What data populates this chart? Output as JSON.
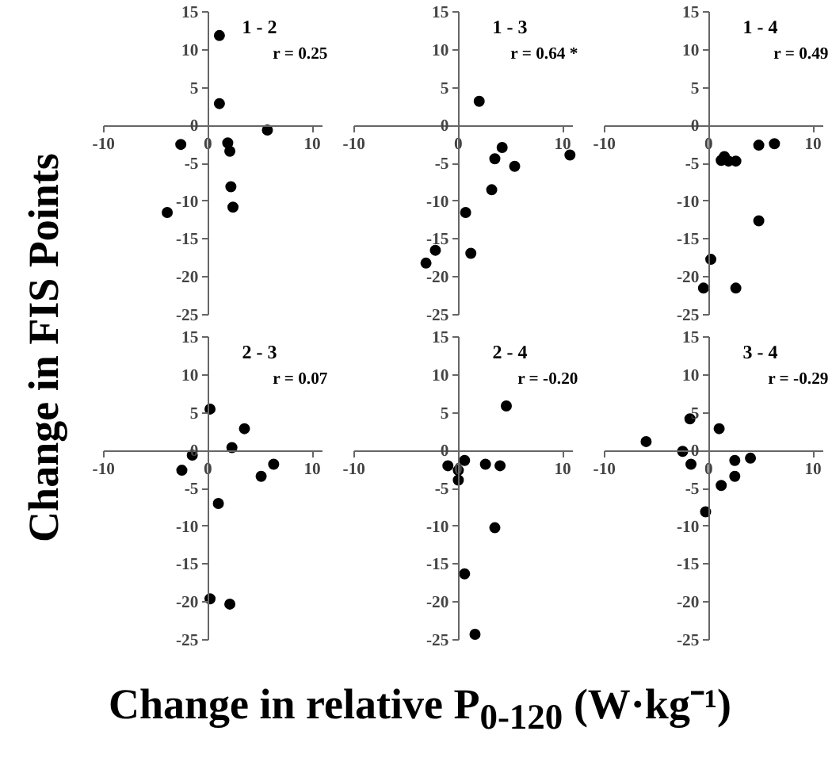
{
  "chart_data": [
    {
      "type": "scatter",
      "title": "1 - 2",
      "annotations": [
        "r = 0.25"
      ],
      "ylabel": "Change in FIS Points",
      "x": [
        1.1,
        1.1,
        5.7,
        -2.6,
        1.9,
        2.1,
        2.2,
        2.4,
        -3.9
      ],
      "values": [
        11.9,
        2.9,
        -0.6,
        -2.5,
        -2.3,
        -3.4,
        -8.1,
        -10.8,
        -11.5
      ],
      "color": "#000000",
      "marker": "circle",
      "xlim": [
        -10,
        11
      ],
      "ylim": [
        -25,
        15
      ],
      "xticks": [
        -10,
        0,
        10
      ],
      "yticks": [
        -25,
        -20,
        -15,
        -10,
        -5,
        0,
        5,
        10,
        15
      ],
      "grid": false
    },
    {
      "type": "scatter",
      "title": "1 - 3",
      "annotations": [
        "r = 0.64 *"
      ],
      "x": [
        2.0,
        4.2,
        3.5,
        5.4,
        10.7,
        3.2,
        0.7,
        -2.2,
        1.2,
        -3.1
      ],
      "values": [
        3.2,
        -2.9,
        -4.4,
        -5.4,
        -3.9,
        -8.5,
        -11.5,
        -16.5,
        -16.9,
        -18.2
      ],
      "color": "#000000",
      "marker": "circle",
      "xlim": [
        -10,
        11
      ],
      "ylim": [
        -25,
        15
      ],
      "xticks": [
        -10,
        0,
        10
      ],
      "yticks": [
        -25,
        -20,
        -15,
        -10,
        -5,
        0,
        5,
        10,
        15
      ],
      "grid": false
    },
    {
      "type": "scatter",
      "title": "1 - 4",
      "annotations": [
        "r = 0.49"
      ],
      "x": [
        4.8,
        6.3,
        1.5,
        1.2,
        1.9,
        2.6,
        4.8,
        0.2,
        -0.5,
        2.6
      ],
      "values": [
        -2.6,
        -2.4,
        -4.1,
        -4.6,
        -4.7,
        -4.7,
        -12.6,
        -17.7,
        -21.5,
        -21.5
      ],
      "color": "#000000",
      "marker": "circle",
      "xlim": [
        -10,
        11
      ],
      "ylim": [
        -25,
        15
      ],
      "xticks": [
        -10,
        0,
        10
      ],
      "yticks": [
        -25,
        -20,
        -15,
        -10,
        -5,
        0,
        5,
        10,
        15
      ],
      "grid": false
    },
    {
      "type": "scatter",
      "title": "2 - 3",
      "annotations": [
        "r = 0.07"
      ],
      "x": [
        0.2,
        3.5,
        2.3,
        -1.5,
        -2.5,
        6.3,
        5.1,
        1.0,
        0.2,
        2.1
      ],
      "values": [
        5.5,
        2.9,
        0.4,
        -0.6,
        -2.6,
        -1.8,
        -3.4,
        -7.0,
        -19.6,
        -20.3
      ],
      "color": "#000000",
      "marker": "circle",
      "xlim": [
        -10,
        11
      ],
      "ylim": [
        -25,
        15
      ],
      "xticks": [
        -10,
        0,
        10
      ],
      "yticks": [
        -25,
        -20,
        -15,
        -10,
        -5,
        0,
        5,
        10,
        15
      ],
      "grid": false
    },
    {
      "type": "scatter",
      "title": "2 - 4",
      "annotations": [
        "r = -0.20"
      ],
      "xlabel": "Change in relative P$_{0-120}$ (W·kg⁻¹)",
      "x": [
        4.6,
        0.6,
        -1.0,
        0.0,
        2.6,
        4.0,
        0.0,
        3.5,
        0.6,
        1.6
      ],
      "values": [
        5.9,
        -1.3,
        -2.0,
        -2.6,
        -1.8,
        -2.0,
        -3.9,
        -10.2,
        -16.3,
        -24.3
      ],
      "color": "#000000",
      "marker": "circle",
      "xlim": [
        -10,
        11
      ],
      "ylim": [
        -25,
        15
      ],
      "xticks": [
        -10,
        0,
        10
      ],
      "yticks": [
        -25,
        -20,
        -15,
        -10,
        -5,
        0,
        5,
        10,
        15
      ],
      "grid": false
    },
    {
      "type": "scatter",
      "title": "3 - 4",
      "annotations": [
        "r = -0.29"
      ],
      "x": [
        -1.8,
        1.0,
        -6.0,
        -2.5,
        -1.7,
        2.5,
        4.0,
        2.5,
        1.2,
        -0.3
      ],
      "values": [
        4.2,
        2.9,
        1.2,
        -0.1,
        -1.8,
        -1.3,
        -1.0,
        -3.4,
        -4.6,
        -8.1
      ],
      "color": "#000000",
      "marker": "circle",
      "xlim": [
        -10,
        11
      ],
      "ylim": [
        -25,
        15
      ],
      "xticks": [
        -10,
        0,
        10
      ],
      "yticks": [
        -25,
        -20,
        -15,
        -10,
        -5,
        0,
        5,
        10,
        15
      ],
      "grid": false
    }
  ]
}
